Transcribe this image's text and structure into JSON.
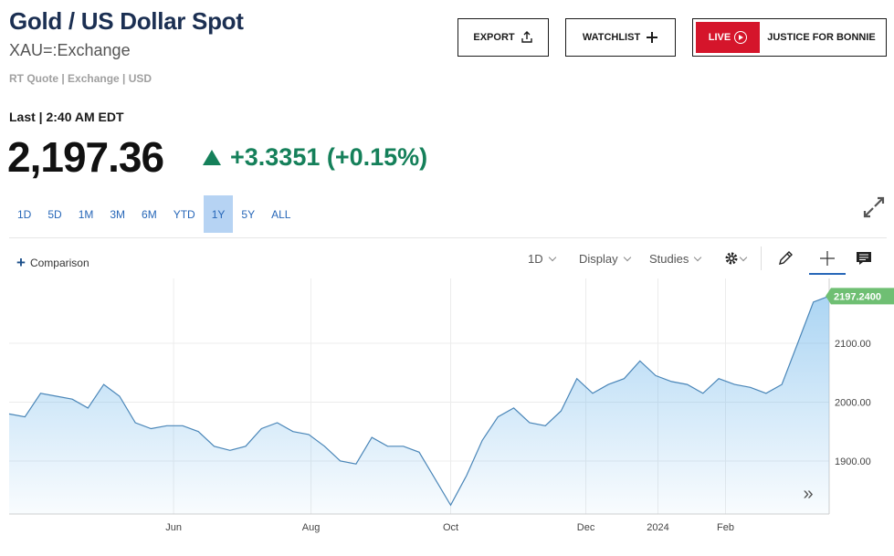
{
  "header": {
    "title": "Gold / US Dollar Spot",
    "symbol": "XAU=:Exchange",
    "meta": "RT Quote | Exchange | USD"
  },
  "buttons": {
    "export": "EXPORT",
    "watchlist": "WATCHLIST",
    "live_badge": "LIVE",
    "live_text": "JUSTICE FOR BONNIE"
  },
  "quote": {
    "last_label": "Last | 2:40 AM EDT",
    "price": "2,197.36",
    "change": "+3.3351 (+0.15%)",
    "direction": "up",
    "change_color": "#15805a"
  },
  "ranges": {
    "items": [
      "1D",
      "5D",
      "1M",
      "3M",
      "6M",
      "YTD",
      "1Y",
      "5Y",
      "ALL"
    ],
    "active": "1Y"
  },
  "toolbar": {
    "comparison": "Comparison",
    "interval": "1D",
    "display": "Display",
    "studies": "Studies",
    "icons": [
      "settings-icon",
      "pencil-icon",
      "crosshair-icon",
      "news-icon"
    ]
  },
  "chart_data": {
    "type": "area",
    "x_tick_labels": [
      "Jun",
      "Aug",
      "Oct",
      "Dec",
      "2024",
      "Feb"
    ],
    "y_tick_labels": [
      "1900.00",
      "2000.00",
      "2100.00"
    ],
    "ylim": [
      1810,
      2210
    ],
    "y_axis_side": "right",
    "last_value_label": "2197.2400",
    "accent_color": "#68b3ea",
    "badge_color": "#6fbf73",
    "x": [
      "2023-03-20",
      "2023-03-27",
      "2023-04-03",
      "2023-04-10",
      "2023-04-17",
      "2023-04-24",
      "2023-05-01",
      "2023-05-08",
      "2023-05-15",
      "2023-05-22",
      "2023-05-29",
      "2023-06-05",
      "2023-06-12",
      "2023-06-19",
      "2023-06-26",
      "2023-07-03",
      "2023-07-10",
      "2023-07-17",
      "2023-07-24",
      "2023-07-31",
      "2023-08-07",
      "2023-08-14",
      "2023-08-21",
      "2023-08-28",
      "2023-09-04",
      "2023-09-11",
      "2023-09-18",
      "2023-09-25",
      "2023-10-02",
      "2023-10-09",
      "2023-10-16",
      "2023-10-23",
      "2023-10-30",
      "2023-11-06",
      "2023-11-13",
      "2023-11-20",
      "2023-11-27",
      "2023-12-04",
      "2023-12-11",
      "2023-12-18",
      "2023-12-25",
      "2024-01-01",
      "2024-01-08",
      "2024-01-15",
      "2024-01-22",
      "2024-01-29",
      "2024-02-05",
      "2024-02-12",
      "2024-02-19",
      "2024-02-26",
      "2024-03-04",
      "2024-03-11",
      "2024-03-18"
    ],
    "y": [
      1980,
      1975,
      2015,
      2010,
      2005,
      1990,
      2030,
      2010,
      1965,
      1955,
      1960,
      1960,
      1950,
      1925,
      1918,
      1925,
      1955,
      1965,
      1950,
      1945,
      1925,
      1900,
      1895,
      1940,
      1925,
      1925,
      1915,
      1870,
      1825,
      1875,
      1935,
      1975,
      1990,
      1965,
      1960,
      1985,
      2040,
      2015,
      2030,
      2040,
      2070,
      2045,
      2035,
      2030,
      2015,
      2040,
      2030,
      2025,
      2015,
      2030,
      2100,
      2170,
      2180
    ]
  }
}
